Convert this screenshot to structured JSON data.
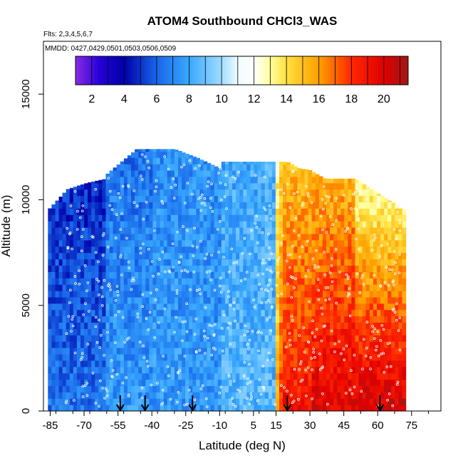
{
  "chart_data": {
    "type": "heatmap",
    "title": "ATOM4 Southbound CHCl3_WAS",
    "flights_note": "Flts: 2,3,4,5,6,7",
    "dates_note": "MMDD: 0427,0429,0501,0503,0506,0509",
    "xlabel": "Latitude (deg N)",
    "ylabel": "Altitude (m)",
    "xlim": [
      -88,
      88
    ],
    "ylim": [
      0,
      17500
    ],
    "x_ticks": [
      -85,
      -70,
      -55,
      -40,
      -25,
      -10,
      5,
      15,
      30,
      45,
      60,
      75
    ],
    "x_tick_labels": [
      "-85",
      "-70",
      "-55",
      "-40",
      "-25",
      "-10",
      "5",
      "15",
      "30",
      "45",
      "60",
      "75"
    ],
    "y_ticks": [
      0,
      5000,
      10000,
      15000
    ],
    "y_tick_labels": [
      "0",
      "5000",
      "10000",
      "15000"
    ],
    "colorbar": {
      "min": 1,
      "max": 21.5,
      "ticks": [
        2,
        4,
        6,
        8,
        10,
        12,
        14,
        16,
        18,
        20
      ],
      "tick_labels": [
        "2",
        "4",
        "6",
        "8",
        "10",
        "12",
        "14",
        "16",
        "18",
        "20"
      ],
      "stops": [
        {
          "value": 1,
          "color": "#8a2be2"
        },
        {
          "value": 2.5,
          "color": "#2400d8"
        },
        {
          "value": 4,
          "color": "#0000a8"
        },
        {
          "value": 6,
          "color": "#1866e8"
        },
        {
          "value": 8,
          "color": "#38a8ff"
        },
        {
          "value": 10,
          "color": "#a0dcff"
        },
        {
          "value": 11,
          "color": "#f0faff"
        },
        {
          "value": 12,
          "color": "#ffffff"
        },
        {
          "value": 13,
          "color": "#ffffa0"
        },
        {
          "value": 14,
          "color": "#ffe040"
        },
        {
          "value": 16,
          "color": "#ffa000"
        },
        {
          "value": 18,
          "color": "#ff2800"
        },
        {
          "value": 20,
          "color": "#e00000"
        },
        {
          "value": 21.5,
          "color": "#a01818"
        }
      ]
    },
    "profile_markers_lat": [
      -54,
      -43,
      -22,
      20,
      61
    ],
    "field": {
      "lat_min": -86,
      "lat_max": 72,
      "regions": [
        {
          "lat_from": -86,
          "lat_to": -60,
          "alt_top": [
            9500,
            10500,
            10800,
            11000
          ],
          "value_low": 6.5,
          "value_high": 4.5
        },
        {
          "lat_from": -60,
          "lat_to": -40,
          "alt_top": [
            11200,
            11800,
            12400,
            12400
          ],
          "value_low": 7.5,
          "value_high": 6.5
        },
        {
          "lat_from": -40,
          "lat_to": -10,
          "alt_top": [
            12400,
            12400,
            12000,
            11500
          ],
          "value_low": 7.5,
          "value_high": 7.2
        },
        {
          "lat_from": -10,
          "lat_to": 15,
          "alt_top": [
            11800,
            11800,
            11800,
            11800
          ],
          "value_low": 8.5,
          "value_high": 8.0
        },
        {
          "lat_from": 15,
          "lat_to": 30,
          "alt_top": [
            11800,
            11800,
            11500,
            11400
          ],
          "value_low": 19.0,
          "value_high": 15.0
        },
        {
          "lat_from": 30,
          "lat_to": 50,
          "alt_top": [
            11400,
            11000,
            11000,
            11000
          ],
          "value_low": 20.0,
          "value_high": 15.0
        },
        {
          "lat_from": 50,
          "lat_to": 72,
          "alt_top": [
            11000,
            10500,
            10000,
            9500
          ],
          "value_low": 20.5,
          "value_high": 12.0
        }
      ]
    }
  }
}
